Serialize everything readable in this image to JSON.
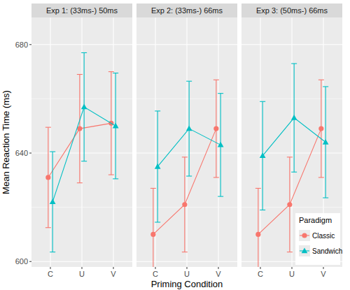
{
  "chart_data": [
    {
      "type": "line",
      "title": "Exp 1: (33ms-) 50ms",
      "ylabel": "Mean Reaction Time (ms)",
      "categories": [
        "C",
        "U",
        "V"
      ],
      "series": [
        {
          "name": "Classic",
          "color": "#f8766d",
          "marker": "circle",
          "values": [
            631,
            649,
            651
          ],
          "errors": [
            18.5,
            20,
            19
          ]
        },
        {
          "name": "Sandwich",
          "color": "#00bfc4",
          "marker": "triangle",
          "values": [
            622,
            657,
            650
          ],
          "errors": [
            18.5,
            20,
            19.5
          ]
        }
      ],
      "ylim": [
        598,
        690
      ],
      "yticks": [
        600,
        640,
        680
      ],
      "grid": true
    },
    {
      "type": "line",
      "title": "Exp 2: (33ms-) 66ms",
      "xlabel": "Priming Condition",
      "categories": [
        "C",
        "U",
        "V"
      ],
      "series": [
        {
          "name": "Classic",
          "color": "#f8766d",
          "marker": "circle",
          "values": [
            610,
            621,
            649
          ],
          "errors": [
            17,
            17.5,
            18
          ]
        },
        {
          "name": "Sandwich",
          "color": "#00bfc4",
          "marker": "triangle",
          "values": [
            635,
            649,
            643
          ],
          "errors": [
            20.5,
            17.5,
            19
          ]
        }
      ],
      "ylim": [
        598,
        690
      ],
      "yticks": [
        600,
        640,
        680
      ],
      "grid": true
    },
    {
      "type": "line",
      "title": "Exp 3: (50ms-) 66ms",
      "legend_title": "Paradigm",
      "legend": "bottom-right",
      "categories": [
        "C",
        "U",
        "V"
      ],
      "series": [
        {
          "name": "Classic",
          "color": "#f8766d",
          "marker": "circle",
          "values": [
            610,
            621,
            649
          ],
          "errors": [
            17,
            17.5,
            18
          ]
        },
        {
          "name": "Sandwich",
          "color": "#00bfc4",
          "marker": "triangle",
          "values": [
            639,
            653,
            644
          ],
          "errors": [
            20,
            20,
            20.5
          ]
        }
      ],
      "ylim": [
        598,
        690
      ],
      "yticks": [
        600,
        640,
        680
      ],
      "grid": true
    }
  ]
}
